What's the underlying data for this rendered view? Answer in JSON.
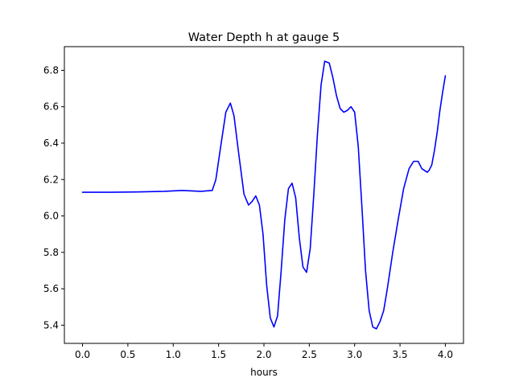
{
  "chart_data": {
    "type": "line",
    "title": "Water Depth h at gauge 5",
    "xlabel": "hours",
    "ylabel": "",
    "xlim": [
      -0.2,
      4.2
    ],
    "ylim": [
      5.3,
      6.93
    ],
    "xticks": [
      0.0,
      0.5,
      1.0,
      1.5,
      2.0,
      2.5,
      3.0,
      3.5,
      4.0
    ],
    "xtick_labels": [
      "0.0",
      "0.5",
      "1.0",
      "1.5",
      "2.0",
      "2.5",
      "3.0",
      "3.5",
      "4.0"
    ],
    "yticks": [
      5.4,
      5.6,
      5.8,
      6.0,
      6.2,
      6.4,
      6.6,
      6.8
    ],
    "ytick_labels": [
      "5.4",
      "5.6",
      "5.8",
      "6.0",
      "6.2",
      "6.4",
      "6.6",
      "6.8"
    ],
    "grid": false,
    "series": [
      {
        "color": "#0000ff",
        "x": [
          0.0,
          0.3,
          0.6,
          0.9,
          1.1,
          1.3,
          1.43,
          1.47,
          1.52,
          1.58,
          1.63,
          1.67,
          1.72,
          1.78,
          1.83,
          1.87,
          1.91,
          1.95,
          1.99,
          2.03,
          2.07,
          2.11,
          2.15,
          2.19,
          2.23,
          2.27,
          2.31,
          2.35,
          2.39,
          2.43,
          2.47,
          2.51,
          2.55,
          2.59,
          2.63,
          2.67,
          2.72,
          2.76,
          2.8,
          2.84,
          2.88,
          2.92,
          2.96,
          3.0,
          3.04,
          3.08,
          3.12,
          3.16,
          3.2,
          3.24,
          3.28,
          3.32,
          3.36,
          3.42,
          3.48,
          3.54,
          3.6,
          3.65,
          3.7,
          3.74,
          3.77,
          3.8,
          3.82,
          3.85,
          3.88,
          3.91,
          3.94,
          3.97,
          4.0
        ],
        "y": [
          6.13,
          6.13,
          6.132,
          6.135,
          6.14,
          6.135,
          6.14,
          6.2,
          6.37,
          6.57,
          6.62,
          6.55,
          6.35,
          6.12,
          6.06,
          6.08,
          6.11,
          6.06,
          5.9,
          5.62,
          5.44,
          5.39,
          5.45,
          5.7,
          5.98,
          6.15,
          6.18,
          6.1,
          5.88,
          5.72,
          5.69,
          5.82,
          6.12,
          6.45,
          6.72,
          6.85,
          6.84,
          6.76,
          6.66,
          6.59,
          6.57,
          6.58,
          6.6,
          6.57,
          6.38,
          6.05,
          5.7,
          5.48,
          5.39,
          5.38,
          5.42,
          5.48,
          5.6,
          5.8,
          5.98,
          6.15,
          6.26,
          6.3,
          6.3,
          6.26,
          6.25,
          6.24,
          6.25,
          6.28,
          6.36,
          6.46,
          6.58,
          6.68,
          6.77
        ]
      }
    ]
  }
}
